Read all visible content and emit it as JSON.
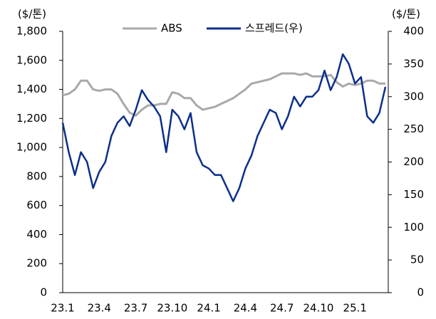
{
  "chart_data": {
    "type": "line",
    "y_label": "($/톤)",
    "y2_label": "($/톤)",
    "categories": [
      "23.1",
      null,
      null,
      null,
      null,
      null,
      "23.4",
      null,
      null,
      null,
      null,
      null,
      "23.7",
      null,
      null,
      null,
      null,
      null,
      "23.10",
      null,
      null,
      null,
      null,
      null,
      "24.1",
      null,
      null,
      null,
      null,
      null,
      "24.4",
      null,
      null,
      null,
      null,
      null,
      "24.7",
      null,
      null,
      null,
      null,
      null,
      "24.10",
      null,
      null,
      null,
      null,
      null,
      "25.1",
      null,
      null,
      null,
      null,
      null
    ],
    "series": [
      {
        "name": "ABS",
        "color": "#a9a9a9",
        "values": [
          1360,
          1370,
          1400,
          1460,
          1460,
          1400,
          1390,
          1400,
          1400,
          1370,
          1300,
          1240,
          1220,
          1260,
          1290,
          1290,
          1300,
          1300,
          1380,
          1370,
          1340,
          1340,
          1290,
          1260,
          1270,
          1280,
          1300,
          1320,
          1340,
          1370,
          1400,
          1440,
          1450,
          1460,
          1470,
          1490,
          1510,
          1510,
          1510,
          1500,
          1510,
          1490,
          1490,
          1490,
          1500,
          1450,
          1420,
          1440,
          1430,
          1440,
          1460,
          1460,
          1440,
          1440
        ]
      },
      {
        "name": "스프레드(우)",
        "color": "#0b2f8a",
        "axis": "y2",
        "values": [
          260,
          215,
          180,
          215,
          200,
          160,
          185,
          200,
          240,
          260,
          270,
          255,
          280,
          310,
          295,
          285,
          270,
          215,
          280,
          270,
          250,
          275,
          215,
          195,
          190,
          180,
          180,
          160,
          140,
          160,
          190,
          210,
          240,
          260,
          280,
          275,
          250,
          270,
          300,
          285,
          300,
          300,
          310,
          340,
          310,
          330,
          365,
          350,
          320,
          330,
          270,
          260,
          275,
          315
        ]
      }
    ],
    "ylim": [
      0,
      1800
    ],
    "yticks": [
      0,
      200,
      400,
      600,
      800,
      {
        "value": 1000,
        "label": "1,000"
      },
      {
        "value": 1200,
        "label": "1,200"
      },
      {
        "value": 1400,
        "label": "1,400"
      },
      {
        "value": 1600,
        "label": "1,600"
      },
      {
        "value": 1800,
        "label": "1,800"
      }
    ],
    "y2lim": [
      0,
      400
    ],
    "y2ticks": [
      0,
      50,
      100,
      150,
      200,
      250,
      300,
      350,
      400
    ],
    "legend": "top"
  }
}
